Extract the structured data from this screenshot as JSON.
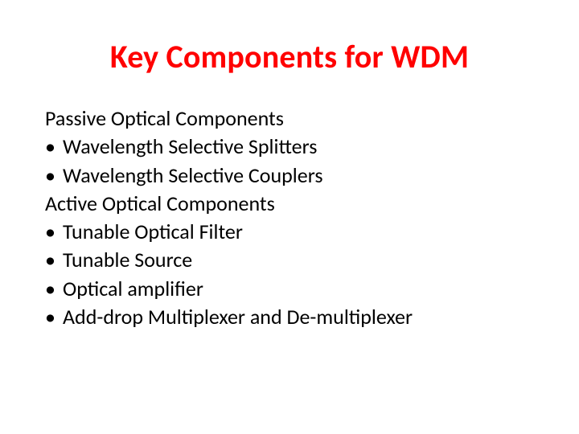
{
  "slide": {
    "title": "Key Components for WDM",
    "title_color": "#ff0000",
    "title_fontsize": 40,
    "body_fontsize": 26,
    "text_color": "#000000",
    "background_color": "#ffffff",
    "sections": [
      {
        "heading": "Passive Optical Components",
        "bullets": [
          "Wavelength Selective Splitters",
          "Wavelength Selective Couplers"
        ]
      },
      {
        "heading": "Active Optical Components",
        "bullets": [
          "Tunable Optical Filter",
          "Tunable Source",
          "Optical amplifier",
          "Add-drop Multiplexer and De-multiplexer"
        ]
      }
    ],
    "bullet_glyph": "•"
  }
}
